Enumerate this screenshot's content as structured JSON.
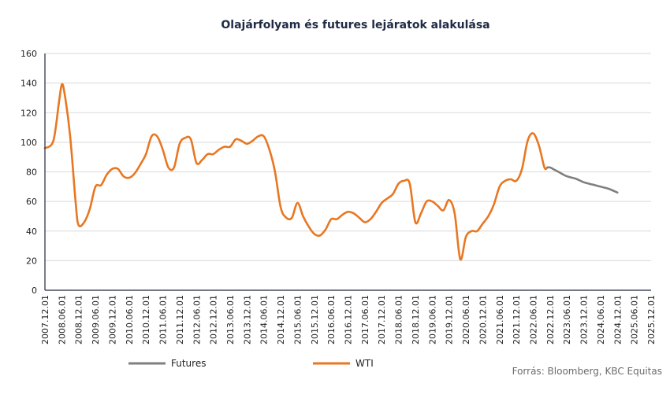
{
  "chart_data": {
    "type": "line",
    "title": "Olajárfolyam és futures lejáratok alakulása",
    "ylim": [
      0,
      160
    ],
    "yticks": [
      0,
      20,
      40,
      60,
      80,
      100,
      120,
      140,
      160
    ],
    "xticks": [
      "2007.12.01",
      "2008.06.01",
      "2008.12.01",
      "2009.06.01",
      "2009.12.01",
      "2010.06.01",
      "2010.12.01",
      "2011.06.01",
      "2011.12.01",
      "2012.06.01",
      "2012.12.01",
      "2013.06.01",
      "2013.12.01",
      "2014.06.01",
      "2014.12.01",
      "2015.06.01",
      "2015.12.01",
      "2016.06.01",
      "2016.12.01",
      "2017.06.01",
      "2017.12.01",
      "2018.06.01",
      "2018.12.01",
      "2019.06.01",
      "2019.12.01",
      "2020.06.01",
      "2020.12.01",
      "2021.06.01",
      "2021.12.01",
      "2022.06.01",
      "2022.12.01",
      "2023.06.01",
      "2023.12.01",
      "2024.06.01",
      "2024.12.01",
      "2025.06.01",
      "2025.12.01"
    ],
    "grid": true,
    "legend_position": "bottom-left",
    "series": [
      {
        "name": "Futures",
        "color": "#7f7f7f",
        "points": [
          [
            "2022.11.01",
            83
          ],
          [
            "2022.12.01",
            83
          ],
          [
            "2023.01.01",
            82
          ],
          [
            "2023.03.01",
            80
          ],
          [
            "2023.06.01",
            77
          ],
          [
            "2023.09.01",
            75.5
          ],
          [
            "2023.12.01",
            73
          ],
          [
            "2024.03.01",
            71.5
          ],
          [
            "2024.06.01",
            70
          ],
          [
            "2024.09.01",
            68.5
          ],
          [
            "2024.12.01",
            66
          ]
        ]
      },
      {
        "name": "WTI",
        "color": "#e87722",
        "points": [
          [
            "2007.12.01",
            96
          ],
          [
            "2008.03.01",
            101
          ],
          [
            "2008.05.01",
            127
          ],
          [
            "2008.06.01",
            139
          ],
          [
            "2008.07.01",
            133
          ],
          [
            "2008.09.01",
            104
          ],
          [
            "2008.11.01",
            58
          ],
          [
            "2008.12.01",
            44
          ],
          [
            "2009.02.01",
            46
          ],
          [
            "2009.04.01",
            55
          ],
          [
            "2009.06.01",
            70
          ],
          [
            "2009.08.01",
            71
          ],
          [
            "2009.10.01",
            78
          ],
          [
            "2009.12.01",
            82
          ],
          [
            "2010.02.01",
            82
          ],
          [
            "2010.04.01",
            77
          ],
          [
            "2010.06.01",
            76
          ],
          [
            "2010.08.01",
            79
          ],
          [
            "2010.10.01",
            85
          ],
          [
            "2010.12.01",
            92
          ],
          [
            "2011.02.01",
            104
          ],
          [
            "2011.04.01",
            104
          ],
          [
            "2011.06.01",
            95
          ],
          [
            "2011.08.01",
            83
          ],
          [
            "2011.10.01",
            83
          ],
          [
            "2011.12.01",
            99
          ],
          [
            "2012.02.01",
            103
          ],
          [
            "2012.04.01",
            102
          ],
          [
            "2012.06.01",
            86
          ],
          [
            "2012.08.01",
            88
          ],
          [
            "2012.10.01",
            92
          ],
          [
            "2012.12.01",
            92
          ],
          [
            "2013.02.01",
            95
          ],
          [
            "2013.04.01",
            97
          ],
          [
            "2013.06.01",
            97
          ],
          [
            "2013.08.01",
            102
          ],
          [
            "2013.10.01",
            101
          ],
          [
            "2013.12.01",
            99
          ],
          [
            "2014.02.01",
            101
          ],
          [
            "2014.04.01",
            104
          ],
          [
            "2014.06.01",
            104
          ],
          [
            "2014.08.01",
            95
          ],
          [
            "2014.10.01",
            80
          ],
          [
            "2014.12.01",
            56
          ],
          [
            "2015.02.01",
            49
          ],
          [
            "2015.04.01",
            49
          ],
          [
            "2015.06.01",
            59
          ],
          [
            "2015.08.01",
            50
          ],
          [
            "2015.10.01",
            43
          ],
          [
            "2015.12.01",
            38
          ],
          [
            "2016.02.01",
            37
          ],
          [
            "2016.04.01",
            41
          ],
          [
            "2016.06.01",
            48
          ],
          [
            "2016.08.01",
            48
          ],
          [
            "2016.10.01",
            51
          ],
          [
            "2016.12.01",
            53
          ],
          [
            "2017.02.01",
            52
          ],
          [
            "2017.04.01",
            49
          ],
          [
            "2017.06.01",
            46
          ],
          [
            "2017.08.01",
            48
          ],
          [
            "2017.10.01",
            53
          ],
          [
            "2017.12.01",
            59
          ],
          [
            "2018.02.01",
            62
          ],
          [
            "2018.04.01",
            65
          ],
          [
            "2018.06.01",
            72
          ],
          [
            "2018.08.01",
            74
          ],
          [
            "2018.10.01",
            72
          ],
          [
            "2018.12.01",
            46
          ],
          [
            "2019.02.01",
            52
          ],
          [
            "2019.04.01",
            60
          ],
          [
            "2019.06.01",
            60
          ],
          [
            "2019.08.01",
            57
          ],
          [
            "2019.10.01",
            54
          ],
          [
            "2019.12.01",
            61
          ],
          [
            "2020.02.01",
            52
          ],
          [
            "2020.04.01",
            21
          ],
          [
            "2020.06.01",
            36
          ],
          [
            "2020.08.01",
            40
          ],
          [
            "2020.10.01",
            40
          ],
          [
            "2020.12.01",
            45
          ],
          [
            "2021.02.01",
            50
          ],
          [
            "2021.04.01",
            58
          ],
          [
            "2021.06.01",
            70
          ],
          [
            "2021.08.01",
            74
          ],
          [
            "2021.10.01",
            75
          ],
          [
            "2021.12.01",
            74
          ],
          [
            "2022.02.01",
            82
          ],
          [
            "2022.04.01",
            101
          ],
          [
            "2022.06.01",
            106
          ],
          [
            "2022.08.01",
            98
          ],
          [
            "2022.10.01",
            83
          ],
          [
            "2022.11.01",
            83
          ]
        ]
      }
    ],
    "source": "Forrás: Bloomberg,  KBC Equitas"
  }
}
